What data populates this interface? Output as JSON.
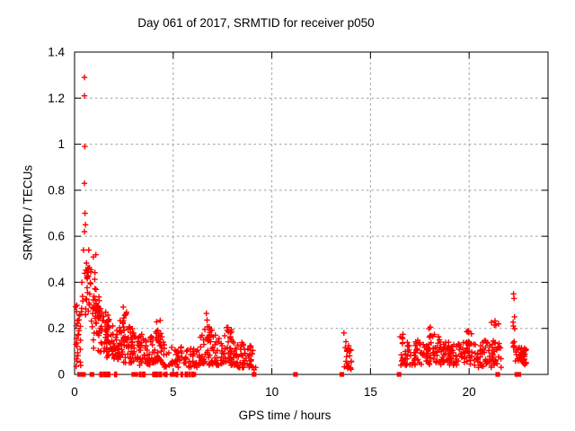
{
  "chart_data": {
    "type": "scatter",
    "title": "Day 061 of 2017, SRMTID for receiver p050",
    "xlabel": "GPS time / hours",
    "ylabel": "SRMTID / TECUs",
    "xlim": [
      0,
      24
    ],
    "ylim": [
      0,
      1.4
    ],
    "xticks": [
      0,
      5,
      10,
      15,
      20
    ],
    "xtick_labels": [
      "0",
      "5",
      "10",
      "15",
      "20"
    ],
    "yticks": [
      0,
      0.2,
      0.4,
      0.6,
      0.8,
      1,
      1.2,
      1.4
    ],
    "ytick_labels": [
      "0",
      "0.2",
      "0.4",
      "0.6",
      "0.8",
      "1",
      "1.2",
      "1.4"
    ],
    "grid": {
      "show": true,
      "color": "#9c9c9c",
      "dash": "2.5,3.2"
    },
    "axis_color": "#000000",
    "background": "#ffffff",
    "marker": "plus",
    "zero_marker": "filled-square",
    "marker_color": "#ff0000",
    "series_name": "SRMTID",
    "outlier_points": [
      [
        0.5,
        1.29
      ],
      [
        0.5,
        1.21
      ],
      [
        0.52,
        0.99
      ],
      [
        0.5,
        0.83
      ],
      [
        0.53,
        0.7
      ],
      [
        0.55,
        0.65
      ],
      [
        0.5,
        0.62
      ],
      [
        0.45,
        0.54
      ],
      [
        0.72,
        0.54
      ],
      [
        0.95,
        0.51
      ],
      [
        1.08,
        0.52
      ],
      [
        9.1,
        0.02
      ],
      [
        9.18,
        0.03
      ],
      [
        22.25,
        0.35
      ],
      [
        22.28,
        0.33
      ],
      [
        22.3,
        0.25
      ],
      [
        22.24,
        0.21
      ]
    ],
    "zero_squares_x": [
      0.25,
      0.45,
      0.88,
      3.0,
      3.1,
      4.05,
      4.6,
      4.95,
      5.05,
      6.05,
      9.1,
      11.2,
      13.55,
      16.45,
      21.45,
      22.42,
      22.52
    ],
    "clusters": [
      {
        "x": [
          0.03,
          0.32
        ],
        "n": 26,
        "y_start": [
          0.02,
          0.33
        ],
        "y_end": [
          0.02,
          0.28
        ],
        "bias": 1.2
      },
      {
        "x": [
          0.35,
          0.78
        ],
        "n": 16,
        "y_start": [
          0.27,
          0.56
        ],
        "y_end": [
          0.25,
          0.5
        ],
        "bias": 1.0
      },
      {
        "x": [
          0.55,
          1.3
        ],
        "n": 42,
        "y_start": [
          0.2,
          0.5
        ],
        "y_end": [
          0.16,
          0.42
        ],
        "bias": 1.1
      },
      {
        "x": [
          0.9,
          1.75
        ],
        "n": 50,
        "y_start": [
          0.1,
          0.36
        ],
        "y_end": [
          0.09,
          0.27
        ],
        "bias": 1.2
      },
      {
        "x": [
          1.55,
          2.3
        ],
        "n": 55,
        "y_start": [
          0.07,
          0.27
        ],
        "y_end": [
          0.06,
          0.21
        ],
        "bias": 1.2
      },
      {
        "x": [
          2.3,
          2.95
        ],
        "n": 48,
        "y_start": [
          0.05,
          0.24
        ],
        "y_end": [
          0.05,
          0.2
        ],
        "bias": 1.4
      },
      {
        "x": [
          2.42,
          2.72
        ],
        "n": 10,
        "y_start": [
          0.16,
          0.31
        ],
        "y_end": [
          0.14,
          0.28
        ],
        "bias": 1.0
      },
      {
        "x": [
          2.95,
          3.85
        ],
        "n": 55,
        "y_start": [
          0.04,
          0.19
        ],
        "y_end": [
          0.04,
          0.16
        ],
        "bias": 1.4
      },
      {
        "x": [
          3.85,
          4.5
        ],
        "n": 38,
        "y_start": [
          0.05,
          0.22
        ],
        "y_end": [
          0.05,
          0.17
        ],
        "bias": 1.3
      },
      {
        "x": [
          4.08,
          4.38
        ],
        "n": 7,
        "y_start": [
          0.14,
          0.27
        ],
        "y_end": [
          0.13,
          0.24
        ],
        "bias": 1.0
      },
      {
        "x": [
          4.5,
          6.25
        ],
        "n": 70,
        "y_start": [
          0.03,
          0.13
        ],
        "y_end": [
          0.03,
          0.11
        ],
        "bias": 1.2
      },
      {
        "x": [
          6.25,
          7.2
        ],
        "n": 58,
        "y_start": [
          0.04,
          0.2
        ],
        "y_end": [
          0.04,
          0.19
        ],
        "bias": 1.4
      },
      {
        "x": [
          6.68,
          7.05
        ],
        "n": 10,
        "y_start": [
          0.14,
          0.27
        ],
        "y_end": [
          0.13,
          0.23
        ],
        "bias": 1.0
      },
      {
        "x": [
          7.2,
          8.25
        ],
        "n": 62,
        "y_start": [
          0.04,
          0.18
        ],
        "y_end": [
          0.04,
          0.16
        ],
        "bias": 1.4
      },
      {
        "x": [
          7.68,
          8.02
        ],
        "n": 8,
        "y_start": [
          0.12,
          0.21
        ],
        "y_end": [
          0.12,
          0.19
        ],
        "bias": 1.0
      },
      {
        "x": [
          8.25,
          9.05
        ],
        "n": 45,
        "y_start": [
          0.03,
          0.15
        ],
        "y_end": [
          0.03,
          0.12
        ],
        "bias": 1.3
      },
      {
        "x": [
          13.62,
          14.05
        ],
        "n": 30,
        "y_start": [
          0.03,
          0.19
        ],
        "y_end": [
          0.02,
          0.1
        ],
        "bias": 1.1
      },
      {
        "x": [
          16.5,
          16.65
        ],
        "n": 12,
        "y_start": [
          0.04,
          0.21
        ],
        "y_end": [
          0.04,
          0.18
        ],
        "bias": 1.0
      },
      {
        "x": [
          16.65,
          18.65
        ],
        "n": 90,
        "y_start": [
          0.04,
          0.14
        ],
        "y_end": [
          0.04,
          0.14
        ],
        "bias": 1.3
      },
      {
        "x": [
          17.25,
          17.42
        ],
        "n": 5,
        "y_start": [
          0.1,
          0.19
        ],
        "y_end": [
          0.1,
          0.17
        ],
        "bias": 1.0
      },
      {
        "x": [
          17.95,
          18.25
        ],
        "n": 10,
        "y_start": [
          0.1,
          0.22
        ],
        "y_end": [
          0.1,
          0.2
        ],
        "bias": 1.0
      },
      {
        "x": [
          18.4,
          18.56
        ],
        "n": 4,
        "y_start": [
          0.1,
          0.18
        ],
        "y_end": [
          0.1,
          0.16
        ],
        "bias": 1.0
      },
      {
        "x": [
          18.65,
          20.35
        ],
        "n": 85,
        "y_start": [
          0.04,
          0.14
        ],
        "y_end": [
          0.04,
          0.14
        ],
        "bias": 1.3
      },
      {
        "x": [
          19.85,
          20.12
        ],
        "n": 8,
        "y_start": [
          0.1,
          0.21
        ],
        "y_end": [
          0.1,
          0.18
        ],
        "bias": 1.0
      },
      {
        "x": [
          20.35,
          21.65
        ],
        "n": 60,
        "y_start": [
          0.03,
          0.15
        ],
        "y_end": [
          0.03,
          0.14
        ],
        "bias": 1.3
      },
      {
        "x": [
          21.0,
          21.55
        ],
        "n": 10,
        "y_start": [
          0.12,
          0.25
        ],
        "y_end": [
          0.1,
          0.22
        ],
        "bias": 1.0
      },
      {
        "x": [
          22.18,
          22.35
        ],
        "n": 8,
        "y_start": [
          0.1,
          0.26
        ],
        "y_end": [
          0.08,
          0.2
        ],
        "bias": 1.0
      },
      {
        "x": [
          22.35,
          22.9
        ],
        "n": 40,
        "y_start": [
          0.05,
          0.13
        ],
        "y_end": [
          0.04,
          0.11
        ],
        "bias": 1.1
      },
      {
        "x": [
          1.28,
          2.3
        ],
        "n": 26,
        "y_start": [
          0,
          0
        ],
        "y_end": [
          0,
          0
        ],
        "bias": 1.0
      },
      {
        "x": [
          3.28,
          3.62
        ],
        "n": 10,
        "y_start": [
          0,
          0
        ],
        "y_end": [
          0,
          0
        ],
        "bias": 1.0
      },
      {
        "x": [
          3.95,
          4.75
        ],
        "n": 14,
        "y_start": [
          0,
          0
        ],
        "y_end": [
          0,
          0
        ],
        "bias": 1.0
      },
      {
        "x": [
          5.15,
          6.05
        ],
        "n": 18,
        "y_start": [
          0,
          0
        ],
        "y_end": [
          0,
          0
        ],
        "bias": 1.0
      }
    ]
  }
}
